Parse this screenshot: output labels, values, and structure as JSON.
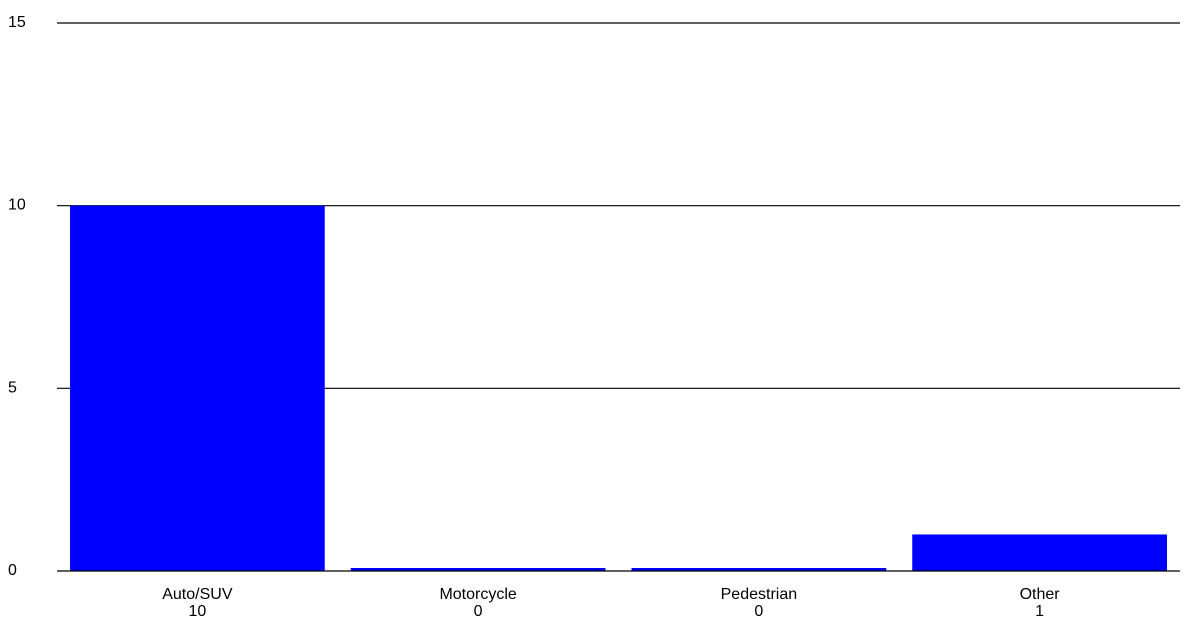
{
  "chart_data": {
    "type": "bar",
    "categories": [
      "Auto/SUV",
      "Motorcycle",
      "Pedestrian",
      "Other"
    ],
    "values": [
      10,
      0,
      0,
      1
    ],
    "value_labels": [
      "10",
      "0",
      "0",
      "1"
    ],
    "yticks": [
      0,
      5,
      10,
      15
    ],
    "ylim": [
      0,
      15
    ],
    "grid": true,
    "legend": "none",
    "bar_color": "#0000ff",
    "title": "",
    "xlabel": "",
    "ylabel": ""
  }
}
